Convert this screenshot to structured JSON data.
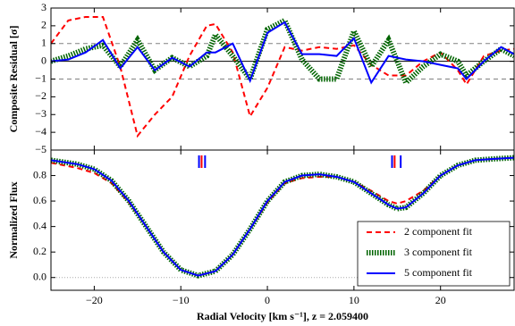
{
  "chart_data": [
    {
      "type": "line",
      "ylabel": "Composite Residual [σ]",
      "xlim": [
        -25,
        28.5
      ],
      "ylim": [
        -5,
        3
      ],
      "xticks": [
        -20,
        -10,
        0,
        10,
        20
      ],
      "yticks": [
        {
          "value": -5,
          "label": "−5"
        },
        {
          "value": -4,
          "label": "−4"
        },
        {
          "value": -3,
          "label": "−3"
        },
        {
          "value": -2,
          "label": "−2"
        },
        {
          "value": -1,
          "label": "−1"
        },
        0,
        1,
        2,
        3
      ],
      "hlines": [
        {
          "value": 1,
          "style": "dashed",
          "color": "#808080"
        },
        {
          "value": 0,
          "style": "solid",
          "color": "#000000"
        },
        {
          "value": -1,
          "style": "dashed",
          "color": "#808080"
        }
      ],
      "x": [
        -25,
        -23,
        -21,
        -19,
        -17,
        -15,
        -13,
        -11,
        -9,
        -7,
        -6,
        -4,
        -2,
        0,
        2,
        4,
        6,
        8,
        10,
        12,
        14,
        16,
        18,
        20,
        22,
        23,
        25,
        27,
        28.5
      ],
      "series": [
        {
          "name": "2 component fit",
          "color": "#ff0000",
          "style": "dashed",
          "values": [
            1.0,
            2.3,
            2.5,
            2.5,
            -0.3,
            -4.2,
            -3.0,
            -2.0,
            0.3,
            2.0,
            2.1,
            0.5,
            -3.1,
            -1.5,
            0.8,
            0.6,
            0.8,
            0.7,
            0.9,
            -0.2,
            -0.8,
            -0.8,
            0.0,
            0.5,
            -0.5,
            -1.3,
            0.3,
            0.6,
            0.7
          ]
        },
        {
          "name": "3 component fit",
          "color": "#006400",
          "style": "dotted",
          "values": [
            0,
            0.3,
            0.7,
            0.9,
            -0.3,
            1.2,
            -0.5,
            0.2,
            -0.3,
            0.3,
            1.5,
            0.3,
            -1.0,
            1.8,
            2.3,
            0.1,
            -1.0,
            -1.0,
            1.7,
            -0.3,
            1.2,
            -1.2,
            -0.3,
            0.4,
            0.0,
            -0.8,
            0.0,
            0.7,
            0.3
          ]
        },
        {
          "name": "5 component fit",
          "color": "#0000ff",
          "style": "solid",
          "values": [
            0,
            0.1,
            0.5,
            1.2,
            -0.4,
            0.8,
            -0.5,
            0.2,
            -0.3,
            0.5,
            0.5,
            1.0,
            -1.1,
            1.6,
            2.2,
            0.4,
            0.4,
            0.3,
            1.3,
            -1.2,
            0.3,
            0.1,
            0.0,
            -0.2,
            -0.4,
            -1.0,
            0.0,
            0.8,
            0.4
          ]
        }
      ]
    },
    {
      "type": "line",
      "ylabel": "Normalized Flux",
      "xlabel": "Radial Velocity [km s⁻¹], z = 2.059400",
      "xlim": [
        -25,
        28.5
      ],
      "ylim": [
        -0.1,
        1.0
      ],
      "xticks": [
        {
          "value": -20,
          "label": "−20"
        },
        {
          "value": -10,
          "label": "−10"
        },
        0,
        10,
        20
      ],
      "yticks": [
        {
          "value": 0,
          "label": "0.0"
        },
        {
          "value": 0.2,
          "label": "0.2"
        },
        {
          "value": 0.4,
          "label": "0.4"
        },
        {
          "value": 0.6,
          "label": "0.6"
        },
        {
          "value": 0.8,
          "label": "0.8"
        }
      ],
      "hlines": [
        {
          "value": 0,
          "style": "dotted",
          "color": "#aaaaaa"
        }
      ],
      "legend": "lower right",
      "markers": [
        {
          "color": "#ff0000",
          "x": [
            -7.6,
            14.7
          ]
        },
        {
          "color": "#0000ff",
          "x": [
            -7.9,
            -7.2,
            14.4,
            15.4
          ]
        }
      ],
      "x": [
        -25,
        -22,
        -20,
        -18,
        -16,
        -14,
        -12,
        -10,
        -8,
        -6,
        -4,
        -2,
        0,
        2,
        4,
        6,
        8,
        10,
        12,
        14,
        15,
        16,
        18,
        20,
        22,
        24,
        26,
        28.5
      ],
      "series": [
        {
          "name": "2 component fit",
          "color": "#ff0000",
          "style": "dashed",
          "values": [
            0.9,
            0.86,
            0.82,
            0.74,
            0.59,
            0.4,
            0.2,
            0.06,
            0.015,
            0.05,
            0.18,
            0.38,
            0.59,
            0.74,
            0.78,
            0.79,
            0.79,
            0.75,
            0.68,
            0.6,
            0.58,
            0.6,
            0.68,
            0.8,
            0.88,
            0.92,
            0.93,
            0.94
          ]
        },
        {
          "name": "3 component fit",
          "color": "#006400",
          "style": "dotted",
          "values": [
            0.92,
            0.89,
            0.85,
            0.76,
            0.6,
            0.4,
            0.2,
            0.06,
            0.015,
            0.05,
            0.18,
            0.38,
            0.6,
            0.75,
            0.8,
            0.81,
            0.79,
            0.75,
            0.66,
            0.57,
            0.54,
            0.55,
            0.66,
            0.8,
            0.88,
            0.92,
            0.93,
            0.94
          ]
        },
        {
          "name": "5 component fit",
          "color": "#0000ff",
          "style": "solid",
          "values": [
            0.92,
            0.89,
            0.85,
            0.76,
            0.6,
            0.4,
            0.2,
            0.06,
            0.015,
            0.05,
            0.18,
            0.38,
            0.6,
            0.75,
            0.8,
            0.81,
            0.79,
            0.75,
            0.66,
            0.57,
            0.54,
            0.55,
            0.66,
            0.8,
            0.88,
            0.92,
            0.93,
            0.94
          ]
        }
      ]
    }
  ]
}
